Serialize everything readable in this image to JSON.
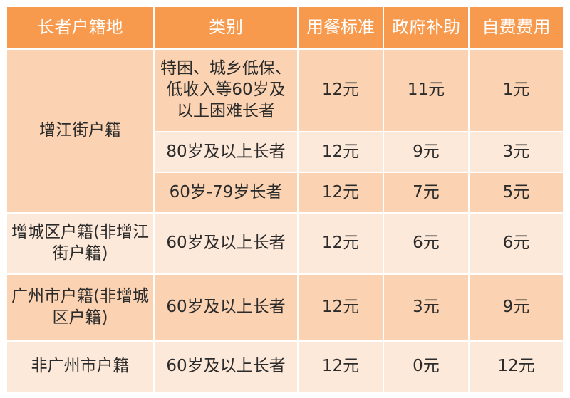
{
  "headers": [
    "长者户籍地",
    "类别",
    "用餐标准",
    "政府补助",
    "自费费用"
  ],
  "groups": [
    {
      "residence": "增江街户籍",
      "rows": [
        {
          "category": "特困、城乡低保、低收入等60岁及以上困难长者",
          "standard": "12元",
          "subsidy": "11元",
          "self_pay": "1元"
        },
        {
          "category": "80岁及以上长者",
          "standard": "12元",
          "subsidy": "9元",
          "self_pay": "3元"
        },
        {
          "category": "60岁-79岁长者",
          "standard": "12元",
          "subsidy": "7元",
          "self_pay": "5元"
        }
      ]
    },
    {
      "residence": "增城区户籍(非增江街户籍)",
      "rows": [
        {
          "category": "60岁及以上长者",
          "standard": "12元",
          "subsidy": "6元",
          "self_pay": "6元"
        }
      ]
    },
    {
      "residence": "广州市户籍(非增城区户籍)",
      "rows": [
        {
          "category": "60岁及以上长者",
          "standard": "12元",
          "subsidy": "3元",
          "self_pay": "9元"
        }
      ]
    },
    {
      "residence": "非广州市户籍",
      "rows": [
        {
          "category": "60岁及以上长者",
          "standard": "12元",
          "subsidy": "0元",
          "self_pay": "12元"
        }
      ]
    }
  ],
  "colors": {
    "header": "#f79a4d",
    "dark_row": "#fbd3b2",
    "light_row": "#fde9da",
    "header_text": "#ffffff"
  }
}
